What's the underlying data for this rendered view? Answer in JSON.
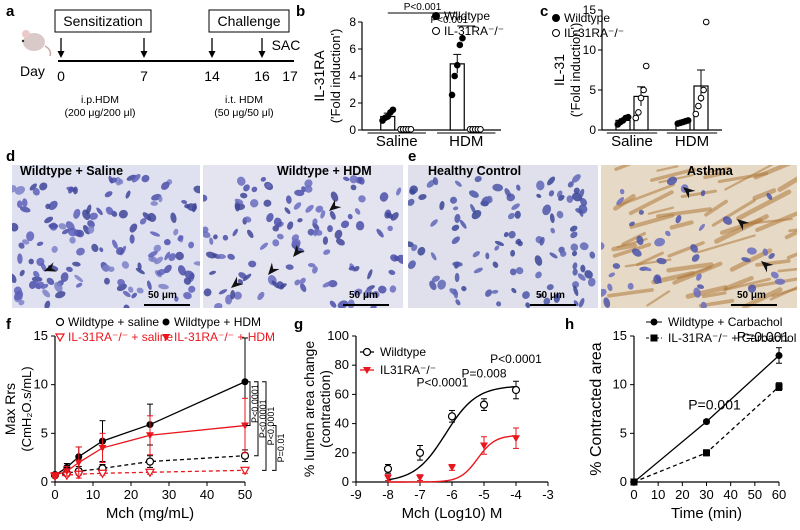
{
  "labels": {
    "a": "a",
    "b": "b",
    "c": "c",
    "d": "d",
    "e": "e",
    "f": "f",
    "g": "g",
    "h": "h"
  },
  "panel_a": {
    "sensitization": "Sensitization",
    "challenge": "Challenge",
    "day": "Day",
    "sac": "SAC",
    "days": [
      "0",
      "7",
      "14",
      "16",
      "17"
    ],
    "ip_line1": "i.p.HDM",
    "ip_line2": "(200 μg/200 μl)",
    "it_line1": "i.t. HDM",
    "it_line2": "(50 μg/50 μl)"
  },
  "panel_d": {
    "title_left": "Wildtype + Saline",
    "title_right": "Wildtype + HDM",
    "scale": "50 μm"
  },
  "panel_e": {
    "title_left": "Healthy Control",
    "title_right": "Asthma",
    "scale": "50 μm"
  },
  "colors": {
    "red": "#e8161d",
    "black": "#000000",
    "stain_blue": "#5a62b8",
    "stain_brown": "#b07a3c"
  },
  "chart_data": [
    {
      "id": "b",
      "type": "bar",
      "ylabel": "IL-31RA",
      "ylabel2": "('Fold induction')",
      "categories": [
        "Saline",
        "HDM"
      ],
      "ylim": [
        0,
        8
      ],
      "yticks": [
        "0",
        "2",
        "4",
        "6",
        "8"
      ],
      "legend": [
        "Wildtype",
        "IL-31RA⁻/⁻"
      ],
      "series": [
        {
          "name": "Wildtype",
          "values": [
            1.0,
            4.9
          ],
          "errors": [
            0.25,
            0.7
          ],
          "points": [
            [
              0.7,
              0.9,
              1.0,
              1.3,
              1.5
            ],
            [
              2.6,
              4.0,
              4.8,
              6.3,
              6.8
            ]
          ]
        },
        {
          "name": "IL-31RA⁻/⁻",
          "values": [
            0.05,
            0.05
          ],
          "errors": [
            0,
            0
          ],
          "points": [
            [
              0.05,
              0.05,
              0.05,
              0.05,
              0.05
            ],
            [
              0.05,
              0.05,
              0.05,
              0.05,
              0.05
            ]
          ]
        }
      ],
      "significance": [
        "P<0.001",
        "P<0.001"
      ]
    },
    {
      "id": "c",
      "type": "bar",
      "ylabel": "IL-31",
      "ylabel2": "('Fold induction')",
      "categories": [
        "Saline",
        "HDM"
      ],
      "ylim": [
        0,
        15
      ],
      "yticks": [
        "0",
        "5",
        "10",
        "15"
      ],
      "legend": [
        "Wildtype",
        "IL-31RA⁻/⁻"
      ],
      "series": [
        {
          "name": "Wildtype",
          "values": [
            1.2,
            1.0
          ],
          "errors": [
            0.2,
            0.1
          ],
          "points": [
            [
              0.7,
              1.0,
              1.2,
              1.5,
              1.6
            ],
            [
              0.8,
              0.9,
              1.0,
              1.1,
              1.2
            ]
          ]
        },
        {
          "name": "IL-31RA⁻/⁻",
          "values": [
            4.2,
            5.5
          ],
          "errors": [
            1.2,
            2.0
          ],
          "points": [
            [
              1.5,
              2.2,
              4.0,
              5.0,
              8.0
            ],
            [
              2.0,
              3.0,
              4.0,
              5.0,
              13.5
            ]
          ]
        }
      ]
    },
    {
      "id": "f",
      "type": "line",
      "xlabel": "Mch (mg/mL)",
      "ylabel": "Max Rrs",
      "ylabel2": "(CmH₂O.s/mL)",
      "xlim": [
        0,
        50
      ],
      "xticks": [
        "0",
        "10",
        "20",
        "30",
        "40",
        "50"
      ],
      "ylim": [
        0,
        15
      ],
      "yticks": [
        "0",
        "5",
        "10",
        "15"
      ],
      "x": [
        0,
        3.125,
        6.25,
        12.5,
        25,
        50
      ],
      "legend": [
        "Wildtype   + saline",
        "Wildtype   + HDM",
        "IL-31RA⁻/⁻ + saline",
        "IL-31RA⁻/⁻ + HDM"
      ],
      "series": [
        {
          "name": "Wildtype   + saline",
          "values": [
            0.7,
            0.9,
            1.1,
            1.4,
            2.1,
            2.7
          ],
          "errors": [
            0.2,
            0.2,
            0.3,
            0.4,
            0.6,
            0.6
          ]
        },
        {
          "name": "Wildtype   + HDM",
          "values": [
            0.7,
            1.5,
            2.6,
            4.2,
            5.9,
            10.3
          ],
          "errors": [
            0.2,
            0.4,
            1.0,
            2.1,
            2.1,
            4.5
          ]
        },
        {
          "name": "IL-31RA⁻/⁻ + saline",
          "values": [
            0.6,
            0.7,
            0.8,
            0.9,
            1.0,
            1.2
          ],
          "errors": [
            0.1,
            0.1,
            0.1,
            0.2,
            0.2,
            0.3
          ]
        },
        {
          "name": "IL-31RA⁻/⁻ + HDM",
          "values": [
            0.7,
            1.1,
            2.0,
            3.5,
            4.8,
            5.8
          ],
          "errors": [
            0.2,
            0.5,
            1.6,
            1.5,
            2.0,
            2.8
          ]
        }
      ],
      "significance": [
        "P<0.0001",
        "P<0.0001",
        "P<0.0001",
        "P=0.01"
      ]
    },
    {
      "id": "g",
      "type": "line",
      "xlabel": "Mch (Log10)  M",
      "ylabel": "% lumen area change",
      "ylabel2": "(contraction)",
      "xlim": [
        -9,
        -3
      ],
      "xticks": [
        "-9",
        "-8",
        "-7",
        "-6",
        "-5",
        "-4",
        "-3"
      ],
      "ylim": [
        0,
        100
      ],
      "yticks": [
        "0",
        "20",
        "40",
        "60",
        "80",
        "100"
      ],
      "x": [
        -8,
        -7,
        -6,
        -5,
        -4
      ],
      "legend": [
        "Wildtype",
        "IL31RA⁻/⁻"
      ],
      "series": [
        {
          "name": "Wildtype",
          "values": [
            9,
            20,
            45,
            53,
            63
          ],
          "errors": [
            3,
            5,
            4,
            4,
            6
          ]
        },
        {
          "name": "IL31RA⁻/⁻",
          "values": [
            3,
            3,
            10,
            25,
            30
          ],
          "errors": [
            2,
            2,
            2,
            6,
            7
          ]
        }
      ],
      "annotations": [
        "P<0.0001",
        "P=0.008",
        "P<0.0001"
      ]
    },
    {
      "id": "h",
      "type": "line",
      "xlabel": "Time (min)",
      "ylabel": "% Contracted area",
      "xlim": [
        0,
        60
      ],
      "xticks": [
        "0",
        "10",
        "20",
        "30",
        "40",
        "50",
        "60"
      ],
      "ylim": [
        0,
        15
      ],
      "yticks": [
        "0",
        "5",
        "10",
        "15"
      ],
      "x": [
        0,
        30,
        60
      ],
      "legend": [
        "Wildtype   + Carbachol",
        "IL-31RA⁻/⁻ + Carbachol"
      ],
      "series": [
        {
          "name": "Wildtype   + Carbachol",
          "values": [
            0,
            6.2,
            13
          ],
          "errors": [
            0,
            0.2,
            0.8
          ]
        },
        {
          "name": "IL-31RA⁻/⁻ + Carbachol",
          "values": [
            0,
            3.0,
            9.8
          ],
          "errors": [
            0,
            0.3,
            0.4
          ]
        }
      ],
      "annotations": [
        "P=0.001",
        "P=0.001"
      ]
    }
  ]
}
